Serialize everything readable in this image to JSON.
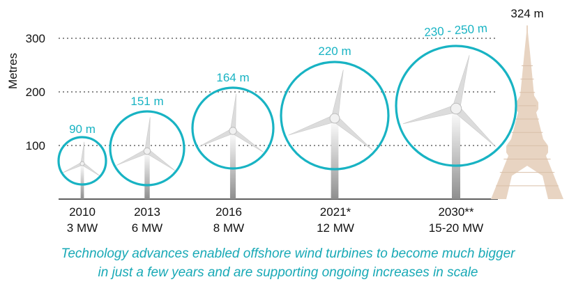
{
  "chart_data": {
    "type": "scatter",
    "title": "",
    "ylabel": "Metres",
    "ylim": [
      0,
      324
    ],
    "yticks": [
      100,
      200,
      300
    ],
    "grid": "dotted horizontal at ticks",
    "series": [
      {
        "year": "2010",
        "capacity": "3 MW",
        "rotor_diameter_m": 90,
        "label": "90 m"
      },
      {
        "year": "2013",
        "capacity": "6 MW",
        "rotor_diameter_m": 151,
        "label": "151 m"
      },
      {
        "year": "2016",
        "capacity": "8 MW",
        "rotor_diameter_m": 164,
        "label": "164 m"
      },
      {
        "year": "2021*",
        "capacity": "12 MW",
        "rotor_diameter_m": 220,
        "label": "220 m"
      },
      {
        "year": "2030**",
        "capacity": "15-20 MW",
        "rotor_diameter_m": 240,
        "label": "230 - 250 m"
      }
    ],
    "reference": {
      "name": "Eiffel Tower",
      "height_m": 324,
      "label": "324 m"
    },
    "colors": {
      "circle": "#18b3c3",
      "tower": "#e8d4c2",
      "grid": "#8a8a8a",
      "blade": "#dcdcdc"
    }
  },
  "caption": {
    "line1": "Technology advances enabled offshore wind turbines to become much bigger",
    "line2": "in just a few years and are supporting ongoing increases in scale"
  }
}
